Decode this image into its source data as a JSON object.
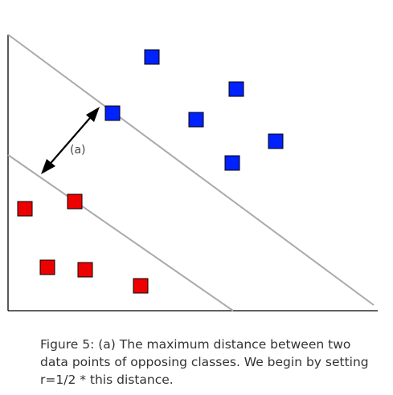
{
  "figure": {
    "arrow_label": "(a)",
    "colors": {
      "class_positive": "#0022ff",
      "class_negative": "#ee0000",
      "boundary": "#aaaaaa",
      "axis": "#000000"
    },
    "points": [
      {
        "cls": "positive"
      },
      {
        "cls": "positive"
      },
      {
        "cls": "positive"
      },
      {
        "cls": "positive"
      },
      {
        "cls": "positive"
      },
      {
        "cls": "positive"
      },
      {
        "cls": "negative"
      },
      {
        "cls": "negative"
      },
      {
        "cls": "negative"
      },
      {
        "cls": "negative"
      },
      {
        "cls": "negative"
      }
    ]
  },
  "caption": {
    "line1": "Figure 5: (a) The maximum distance between two",
    "line2": "data points of opposing classes. We begin by setting",
    "line3": "r=1/2 * this distance."
  }
}
